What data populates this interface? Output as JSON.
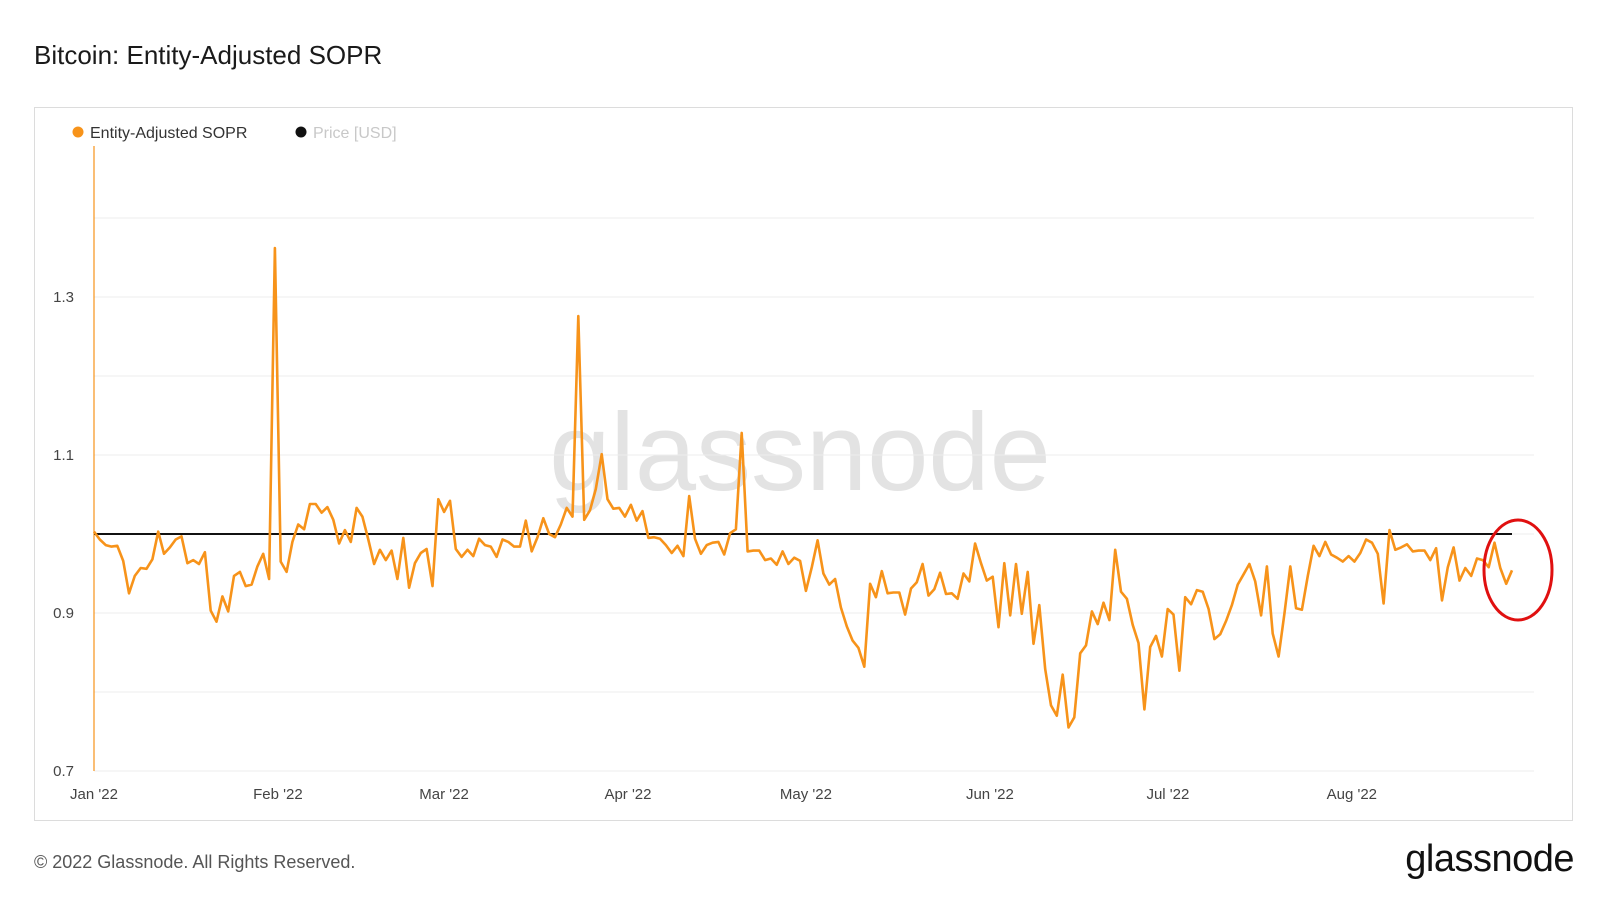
{
  "title": "Bitcoin: Entity-Adjusted SOPR",
  "footer": {
    "copyright": "© 2022 Glassnode. All Rights Reserved.",
    "logo": "glassnode"
  },
  "watermark": "glassnode",
  "colors": {
    "sopr": "#f7931a",
    "price": "#111111",
    "baseline": "#111111",
    "highlight": "#e01010",
    "grid": "#ececec"
  },
  "chart_data": {
    "type": "line",
    "legend": [
      {
        "name": "Entity-Adjusted SOPR",
        "color": "#f7931a",
        "active": true
      },
      {
        "name": "Price [USD]",
        "color": "#111111",
        "active": false
      }
    ],
    "legend_position": "top-left",
    "grid": true,
    "ylim": [
      0.7,
      1.4
    ],
    "yticks": [
      "0.7",
      "0.9",
      "1.1",
      "1.3"
    ],
    "xticks": [
      "Jan '22",
      "Feb '22",
      "Mar '22",
      "Apr '22",
      "May '22",
      "Jun '22",
      "Jul '22",
      "Aug '22"
    ],
    "x_start": "2022-01-01",
    "x_end": "2022-08-28",
    "baseline": 1.0,
    "series": [
      {
        "name": "Entity-Adjusted SOPR",
        "values": [
          1.003,
          0.993,
          0.986,
          0.984,
          0.985,
          0.966,
          0.925,
          0.947,
          0.957,
          0.956,
          0.968,
          1.003,
          0.975,
          0.983,
          0.993,
          0.997,
          0.963,
          0.967,
          0.962,
          0.977,
          0.903,
          0.889,
          0.921,
          0.902,
          0.947,
          0.952,
          0.934,
          0.936,
          0.959,
          0.975,
          0.943,
          1.362,
          0.965,
          0.952,
          0.99,
          1.012,
          1.006,
          1.038,
          1.038,
          1.027,
          1.034,
          1.018,
          0.988,
          1.005,
          0.99,
          1.033,
          1.022,
          0.993,
          0.962,
          0.98,
          0.967,
          0.979,
          0.943,
          0.995,
          0.932,
          0.963,
          0.976,
          0.981,
          0.934,
          1.044,
          1.028,
          1.042,
          0.981,
          0.971,
          0.98,
          0.972,
          0.994,
          0.986,
          0.984,
          0.971,
          0.993,
          0.99,
          0.984,
          0.984,
          1.017,
          0.978,
          0.996,
          1.02,
          1.0,
          0.996,
          1.012,
          1.033,
          1.022,
          1.276,
          1.018,
          1.03,
          1.057,
          1.101,
          1.044,
          1.032,
          1.033,
          1.022,
          1.037,
          1.017,
          1.029,
          0.995,
          0.996,
          0.994,
          0.986,
          0.976,
          0.985,
          0.972,
          1.048,
          0.994,
          0.975,
          0.986,
          0.989,
          0.99,
          0.974,
          1.001,
          1.006,
          1.128,
          0.978,
          0.979,
          0.979,
          0.967,
          0.969,
          0.961,
          0.978,
          0.962,
          0.97,
          0.966,
          0.928,
          0.958,
          0.992,
          0.95,
          0.936,
          0.943,
          0.907,
          0.883,
          0.865,
          0.856,
          0.832,
          0.937,
          0.92,
          0.953,
          0.925,
          0.926,
          0.926,
          0.898,
          0.931,
          0.939,
          0.962,
          0.922,
          0.93,
          0.951,
          0.924,
          0.925,
          0.918,
          0.95,
          0.94,
          0.988,
          0.963,
          0.941,
          0.946,
          0.882,
          0.963,
          0.897,
          0.962,
          0.899,
          0.952,
          0.861,
          0.91,
          0.829,
          0.783,
          0.77,
          0.822,
          0.755,
          0.768,
          0.849,
          0.859,
          0.902,
          0.886,
          0.913,
          0.891,
          0.98,
          0.927,
          0.918,
          0.885,
          0.862,
          0.778,
          0.857,
          0.871,
          0.845,
          0.905,
          0.898,
          0.827,
          0.92,
          0.911,
          0.929,
          0.927,
          0.905,
          0.867,
          0.873,
          0.89,
          0.91,
          0.936,
          0.949,
          0.962,
          0.94,
          0.897,
          0.959,
          0.874,
          0.845,
          0.899,
          0.959,
          0.906,
          0.904,
          0.947,
          0.985,
          0.972,
          0.99,
          0.974,
          0.97,
          0.965,
          0.972,
          0.965,
          0.976,
          0.993,
          0.989,
          0.975,
          0.912,
          1.005,
          0.98,
          0.983,
          0.987,
          0.978,
          0.979,
          0.979,
          0.967,
          0.982,
          0.916,
          0.958,
          0.983,
          0.941,
          0.957,
          0.947,
          0.969,
          0.967,
          0.958,
          0.989,
          0.957,
          0.937,
          0.954
        ]
      },
      {
        "name": "Price [USD]",
        "values": []
      }
    ]
  }
}
